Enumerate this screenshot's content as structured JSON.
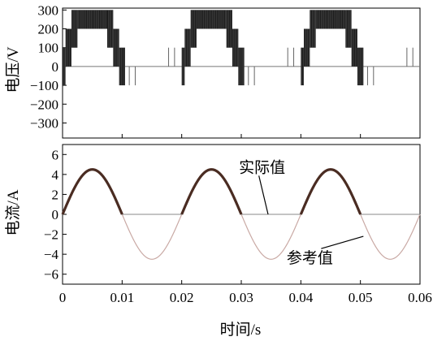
{
  "chart_data": [
    {
      "type": "line",
      "name": "voltage-panel",
      "ylabel": "电压/V",
      "xlim": [
        0,
        0.06
      ],
      "ylim": [
        -380,
        310
      ],
      "yticks": [
        300,
        200,
        100,
        0,
        -100,
        -200,
        -300
      ],
      "ytick_labels": [
        "300",
        "200",
        "100",
        "0",
        "−100",
        "−200",
        "−300"
      ],
      "grid": false,
      "pulse_bursts": [
        {
          "start": 0.0,
          "end": 0.01
        },
        {
          "start": 0.02,
          "end": 0.03
        },
        {
          "start": 0.04,
          "end": 0.05
        }
      ],
      "levels": [
        300,
        200,
        100,
        0,
        -100
      ],
      "burst_shape": [
        {
          "dt": [
            0.0,
            0.0005
          ],
          "min": -100,
          "max": 100
        },
        {
          "dt": [
            0.0005,
            0.0015
          ],
          "min": 0,
          "max": 200
        },
        {
          "dt": [
            0.0015,
            0.0025
          ],
          "min": 100,
          "max": 300
        },
        {
          "dt": [
            0.0025,
            0.0075
          ],
          "min": 200,
          "max": 300
        },
        {
          "dt": [
            0.0075,
            0.0085
          ],
          "min": 100,
          "max": 300
        },
        {
          "dt": [
            0.0085,
            0.0095
          ],
          "min": 0,
          "max": 200
        },
        {
          "dt": [
            0.0095,
            0.0105
          ],
          "min": -100,
          "max": 100
        }
      ],
      "spikes": [
        {
          "x": 0.0112,
          "min": -100,
          "max": 0
        },
        {
          "x": 0.0122,
          "min": -100,
          "max": 0
        },
        {
          "x": 0.0178,
          "min": 0,
          "max": 100
        },
        {
          "x": 0.0188,
          "min": 0,
          "max": 100
        },
        {
          "x": 0.0312,
          "min": -100,
          "max": 0
        },
        {
          "x": 0.0322,
          "min": -100,
          "max": 0
        },
        {
          "x": 0.0378,
          "min": 0,
          "max": 100
        },
        {
          "x": 0.0388,
          "min": 0,
          "max": 100
        },
        {
          "x": 0.0512,
          "min": -100,
          "max": 0
        },
        {
          "x": 0.0522,
          "min": -100,
          "max": 0
        },
        {
          "x": 0.0578,
          "min": 0,
          "max": 100
        },
        {
          "x": 0.0588,
          "min": 0,
          "max": 100
        }
      ]
    },
    {
      "type": "line",
      "name": "current-panel",
      "ylabel": "电流/A",
      "xlabel": "时间/s",
      "xlim": [
        0,
        0.06
      ],
      "ylim": [
        -7,
        7
      ],
      "yticks": [
        6,
        4,
        2,
        0,
        -2,
        -4,
        -6
      ],
      "ytick_labels": [
        "6",
        "4",
        "2",
        "0",
        "−2",
        "−4",
        "−6"
      ],
      "xticks": [
        0,
        0.01,
        0.02,
        0.03,
        0.04,
        0.05,
        0.06
      ],
      "xtick_labels": [
        "0",
        "0.01",
        "0.02",
        "0.03",
        "0.04",
        "0.05",
        "0.06"
      ],
      "grid": false,
      "series": [
        {
          "name": "实际值",
          "description_type": "half-wave rectified sine",
          "amplitude": 4.5,
          "frequency_hz": 50,
          "color": "#4a2c22"
        },
        {
          "name": "参考值",
          "description_type": "sine",
          "amplitude": 4.5,
          "frequency_hz": 50,
          "color": "#c9a9a4"
        }
      ],
      "annotations": [
        {
          "text": "实际值",
          "x": 0.0335,
          "y": 4.2,
          "arrow_to": {
            "x": 0.0345,
            "y": 0.0
          }
        },
        {
          "text": "参考值",
          "x": 0.0415,
          "y": -4.9,
          "arrow_to": {
            "x": 0.0505,
            "y": -2.2
          }
        }
      ]
    }
  ]
}
